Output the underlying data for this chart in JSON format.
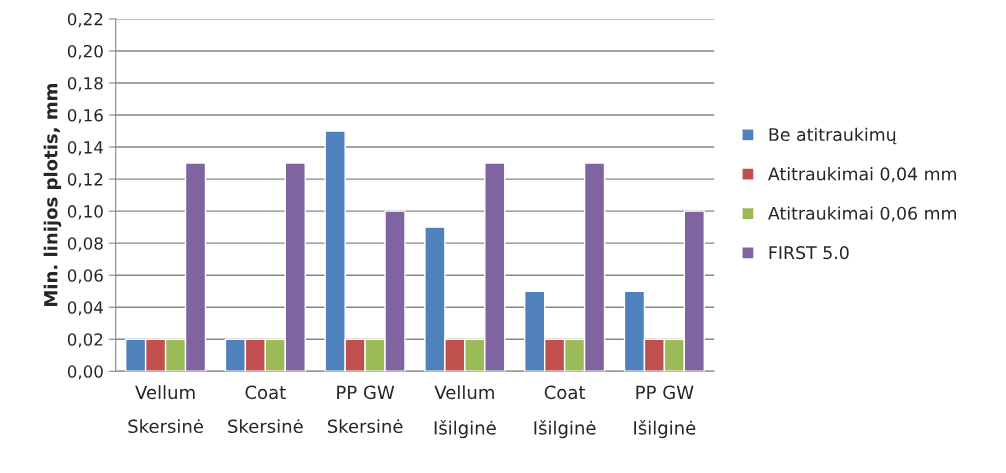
{
  "chart_data": {
    "type": "bar",
    "ylabel": "Min. linijos plotis, mm",
    "categories": [
      "Vellum\nSkersinė",
      "Coat\nSkersinė",
      "PP GW\nSkersinė",
      "Vellum\nIšilginė",
      "Coat\nIšilginė",
      "PP GW\nIšilginė"
    ],
    "series": [
      {
        "name": "Be atitraukimų",
        "color": "#4f81bd",
        "values": [
          0.02,
          0.02,
          0.15,
          0.09,
          0.05,
          0.05
        ]
      },
      {
        "name": "Atitraukimai 0,04 mm",
        "color": "#c0504d",
        "values": [
          0.02,
          0.02,
          0.02,
          0.02,
          0.02,
          0.02
        ]
      },
      {
        "name": "Atitraukimai 0,06 mm",
        "color": "#9bbb59",
        "values": [
          0.02,
          0.02,
          0.02,
          0.02,
          0.02,
          0.02
        ]
      },
      {
        "name": "FIRST 5.0",
        "color": "#8064a2",
        "values": [
          0.13,
          0.13,
          0.1,
          0.13,
          0.13,
          0.1
        ]
      }
    ],
    "ylim": [
      0,
      0.22
    ],
    "yticks": [
      {
        "value": 0,
        "label": "0,00"
      },
      {
        "value": 0.02,
        "label": "0,02"
      },
      {
        "value": 0.04,
        "label": "0,04"
      },
      {
        "value": 0.06,
        "label": "0,06"
      },
      {
        "value": 0.08,
        "label": "0,08"
      },
      {
        "value": 0.1,
        "label": "0,10"
      },
      {
        "value": 0.12,
        "label": "0,12"
      },
      {
        "value": 0.14,
        "label": "0,14"
      },
      {
        "value": 0.16,
        "label": "0,16"
      },
      {
        "value": 0.18,
        "label": "0,18"
      },
      {
        "value": 0.2,
        "label": "0,20"
      },
      {
        "value": 0.22,
        "label": "0,22"
      }
    ],
    "grid": "y",
    "legend": "right"
  }
}
